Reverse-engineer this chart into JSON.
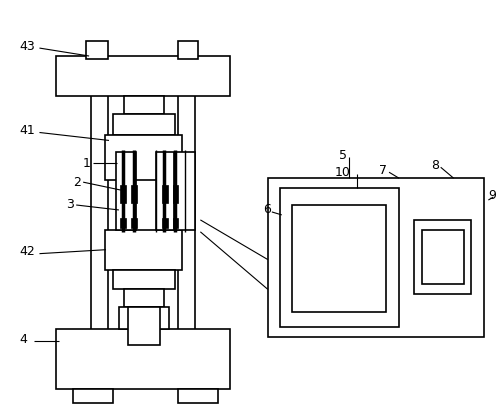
{
  "background_color": "#ffffff",
  "line_color": "#000000",
  "lw": 1.2,
  "font_size": 9,
  "fig_w": 5.02,
  "fig_h": 4.07,
  "dpi": 100
}
